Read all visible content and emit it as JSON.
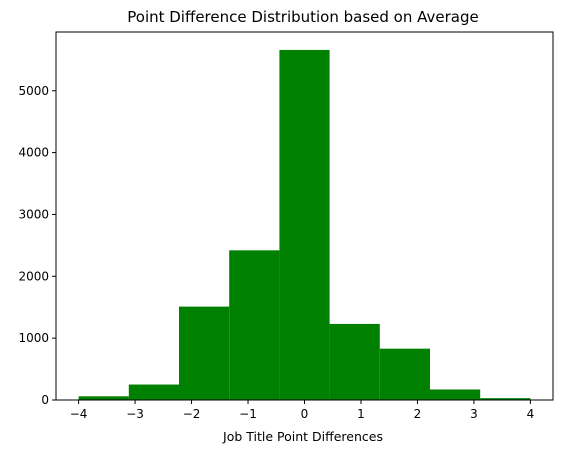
{
  "chart_data": {
    "type": "bar",
    "title": "Point Difference Distribution based on Average",
    "xlabel": "Job Title Point Differences",
    "ylabel": "",
    "bin_edges": [
      -4.0,
      -3.111,
      -2.222,
      -1.333,
      -0.444,
      0.444,
      1.333,
      2.222,
      3.111,
      4.0
    ],
    "values": [
      60,
      250,
      1510,
      2420,
      5660,
      1230,
      830,
      170,
      30
    ],
    "xlim": [
      -4.4,
      4.4
    ],
    "ylim": [
      0,
      5950
    ],
    "xticks": [
      -4,
      -3,
      -2,
      -1,
      0,
      1,
      2,
      3,
      4
    ],
    "xtick_labels": [
      "−4",
      "−3",
      "−2",
      "−1",
      "0",
      "1",
      "2",
      "3",
      "4"
    ],
    "yticks": [
      0,
      1000,
      2000,
      3000,
      4000,
      5000
    ],
    "ytick_labels": [
      "0",
      "1000",
      "2000",
      "3000",
      "4000",
      "5000"
    ],
    "grid": false,
    "legend": "none",
    "bar_color": "#008000"
  }
}
